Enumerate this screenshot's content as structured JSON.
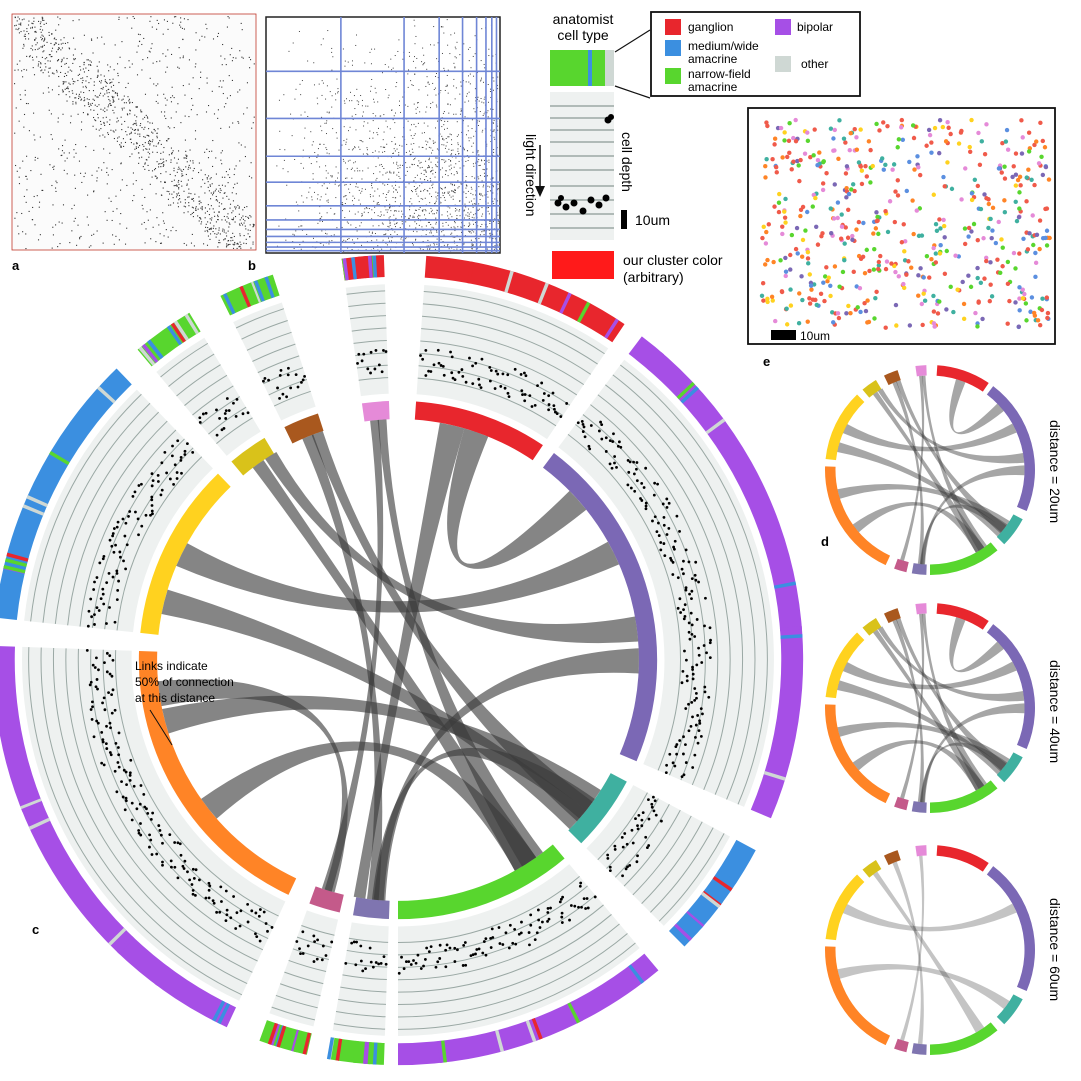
{
  "panel_labels": {
    "a": "a",
    "b": "b",
    "c": "c",
    "d": "d",
    "e": "e"
  },
  "legend": {
    "header_line1": "anatomist",
    "header_line2": "cell type",
    "items": [
      {
        "color": "#e8262d",
        "lines": [
          "ganglion"
        ]
      },
      {
        "color": "#3b8fe0",
        "lines": [
          "medium/wide",
          "amacrine"
        ]
      },
      {
        "color": "#58d62e",
        "lines": [
          "narrow-field",
          "amacrine"
        ]
      },
      {
        "color": "#a64fe6",
        "lines": [
          "bipolar"
        ]
      },
      {
        "color": "#cfd8d4",
        "lines": [
          "other"
        ]
      }
    ]
  },
  "schematic": {
    "light_direction": "light direction",
    "cell_depth": "cell depth",
    "scale_bar": "10um",
    "cluster_color_line1": "our cluster color",
    "cluster_color_line2": "(arbitrary)"
  },
  "panel_e": {
    "scale_bar": "10um"
  },
  "annotation_c": {
    "lines": [
      "Links indicate",
      "50% of connection",
      "at this distance"
    ]
  },
  "distance_labels": [
    "distance = 20um",
    "distance = 40um",
    "distance = 60um"
  ],
  "cluster_colors": [
    "#e8262d",
    "#7b68b5",
    "#3fb0a0",
    "#58d62e",
    "#7f75b0",
    "#c45a8a",
    "#ff8426",
    "#ffd21f",
    "#d9c21a",
    "#a9581e",
    "#e58ad8"
  ],
  "colors": {
    "anatomist_ganglion": "#e8262d",
    "anatomist_medium_wide": "#3b8fe0",
    "anatomist_narrow": "#58d62e",
    "anatomist_bipolar": "#a64fe6",
    "anatomist_other": "#cfd8d4",
    "grid_blue": "#6f86d6",
    "ribbon": "#3a3a3a"
  }
}
